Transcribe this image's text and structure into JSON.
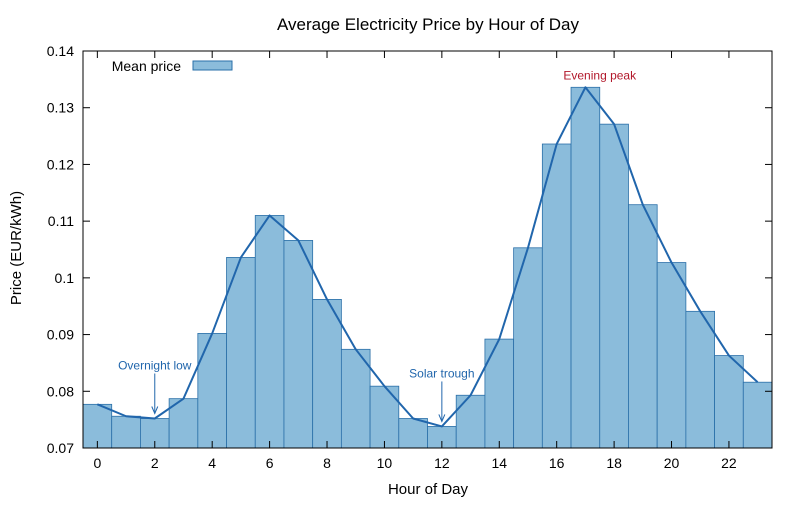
{
  "chart_data": {
    "type": "bar",
    "title": "Average Electricity Price by Hour of Day",
    "xlabel": "Hour of Day",
    "ylabel": "Price (EUR/kWh)",
    "xlim": [
      -0.5,
      23.5
    ],
    "ylim": [
      0.07,
      0.14
    ],
    "x_ticks": [
      0,
      2,
      4,
      6,
      8,
      10,
      12,
      14,
      16,
      18,
      20,
      22
    ],
    "y_ticks": [
      0.07,
      0.08,
      0.09,
      0.1,
      0.11,
      0.12,
      0.13,
      0.14
    ],
    "y_tick_labels": [
      "0.07",
      "0.08",
      "0.09",
      "0.1",
      "0.11",
      "0.12",
      "0.13",
      "0.14"
    ],
    "hours": [
      0,
      1,
      2,
      3,
      4,
      5,
      6,
      7,
      8,
      9,
      10,
      11,
      12,
      13,
      14,
      15,
      16,
      17,
      18,
      19,
      20,
      21,
      22,
      23
    ],
    "series": [
      {
        "name": "Mean price",
        "values": [
          0.0777,
          0.0756,
          0.0752,
          0.0787,
          0.0902,
          0.1036,
          0.111,
          0.1066,
          0.0962,
          0.0874,
          0.0809,
          0.0752,
          0.0738,
          0.0793,
          0.0892,
          0.1053,
          0.1236,
          0.1336,
          0.1271,
          0.1129,
          0.1027,
          0.0941,
          0.0863,
          0.0816
        ]
      }
    ],
    "legend": {
      "label": "Mean price",
      "position": "top-left"
    },
    "grid": false,
    "colors": {
      "bar_fill": "#8bbcdb",
      "bar_edge": "#2a6fa8",
      "line": "#2166ac",
      "annotation_blue": "#2166ac",
      "annotation_red": "#b2182b"
    },
    "annotations": [
      {
        "text": "Overnight low",
        "x": 2,
        "y": 0.0752,
        "color": "blue",
        "arrow": true
      },
      {
        "text": "Solar trough",
        "x": 12,
        "y": 0.0738,
        "color": "blue",
        "arrow": true
      },
      {
        "text": "Evening peak",
        "x": 17,
        "y": 0.1336,
        "color": "red",
        "arrow": false
      }
    ]
  }
}
